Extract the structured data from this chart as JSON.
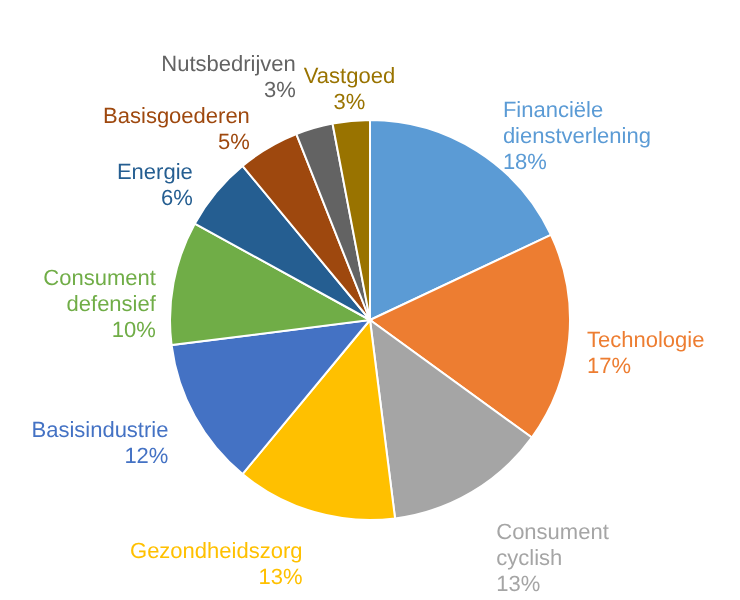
{
  "chart_data": {
    "type": "pie",
    "categories": [
      "Financiële dienstverlening",
      "Technologie",
      "Consument cyclish",
      "Gezondheidszorg",
      "Basisindustrie",
      "Consument defensief",
      "Energie",
      "Basisgoederen",
      "Nutsbedrijven",
      "Vastgoed"
    ],
    "values": [
      18,
      17,
      13,
      13,
      12,
      10,
      6,
      5,
      3,
      3
    ],
    "value_labels": [
      "18%",
      "17%",
      "13%",
      "13%",
      "12%",
      "10%",
      "6%",
      "5%",
      "3%",
      "3%"
    ],
    "colors": [
      "#5b9bd5",
      "#ed7d31",
      "#a5a5a5",
      "#ffc000",
      "#4472c4",
      "#70ad47",
      "#255e91",
      "#9e480e",
      "#636363",
      "#997300"
    ]
  }
}
